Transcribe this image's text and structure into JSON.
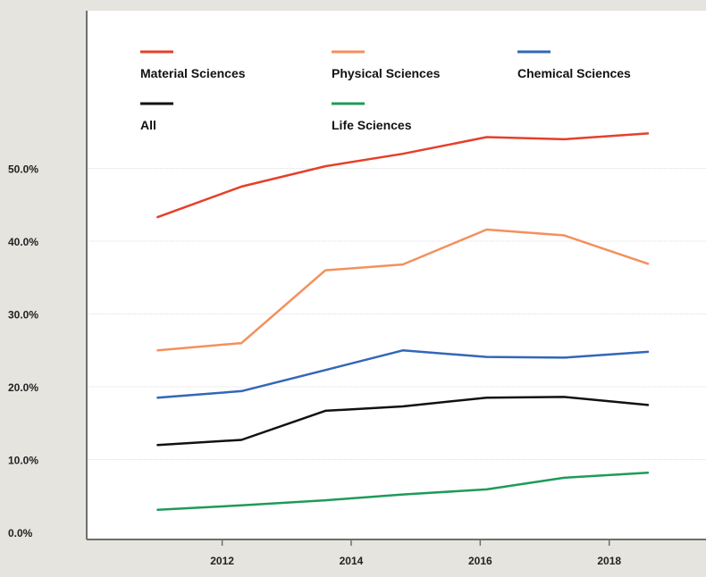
{
  "chart_data": {
    "type": "line",
    "title": "",
    "xlabel": "",
    "ylabel": "",
    "x": [
      2011,
      2012.3,
      2013.6,
      2014.8,
      2016.1,
      2017.3,
      2018.6
    ],
    "xticks": [
      {
        "value": 2012,
        "label": "2012"
      },
      {
        "value": 2014,
        "label": "2014"
      },
      {
        "value": 2016,
        "label": "2016"
      },
      {
        "value": 2018,
        "label": "2018"
      }
    ],
    "xlim": [
      2009.9,
      2019.5
    ],
    "ylim": [
      0,
      60
    ],
    "yticks": [
      {
        "value": 0,
        "label": "0.0%"
      },
      {
        "value": 10,
        "label": "10.0%"
      },
      {
        "value": 20,
        "label": "20.0%"
      },
      {
        "value": 30,
        "label": "30.0%"
      },
      {
        "value": 40,
        "label": "40.0%"
      },
      {
        "value": 50,
        "label": "50.0%"
      }
    ],
    "grid": true,
    "legend_position": "top",
    "series": [
      {
        "name": "Material Sciences",
        "color": "#e5402a",
        "values": [
          43.3,
          47.5,
          50.3,
          52.0,
          54.3,
          54.0,
          54.8
        ]
      },
      {
        "name": "Physical Sciences",
        "color": "#f4905c",
        "values": [
          25.0,
          26.0,
          36.0,
          36.8,
          41.6,
          40.8,
          36.9
        ]
      },
      {
        "name": "Chemical Sciences",
        "color": "#3267b8",
        "values": [
          18.5,
          19.4,
          22.3,
          25.0,
          24.1,
          24.0,
          24.8
        ]
      },
      {
        "name": "All",
        "color": "#111111",
        "values": [
          12.0,
          12.7,
          16.7,
          17.3,
          18.5,
          18.6,
          17.5
        ]
      },
      {
        "name": "Life Sciences",
        "color": "#1f9a5a",
        "values": [
          3.1,
          3.7,
          4.4,
          5.2,
          5.9,
          7.5,
          8.2
        ]
      }
    ]
  }
}
